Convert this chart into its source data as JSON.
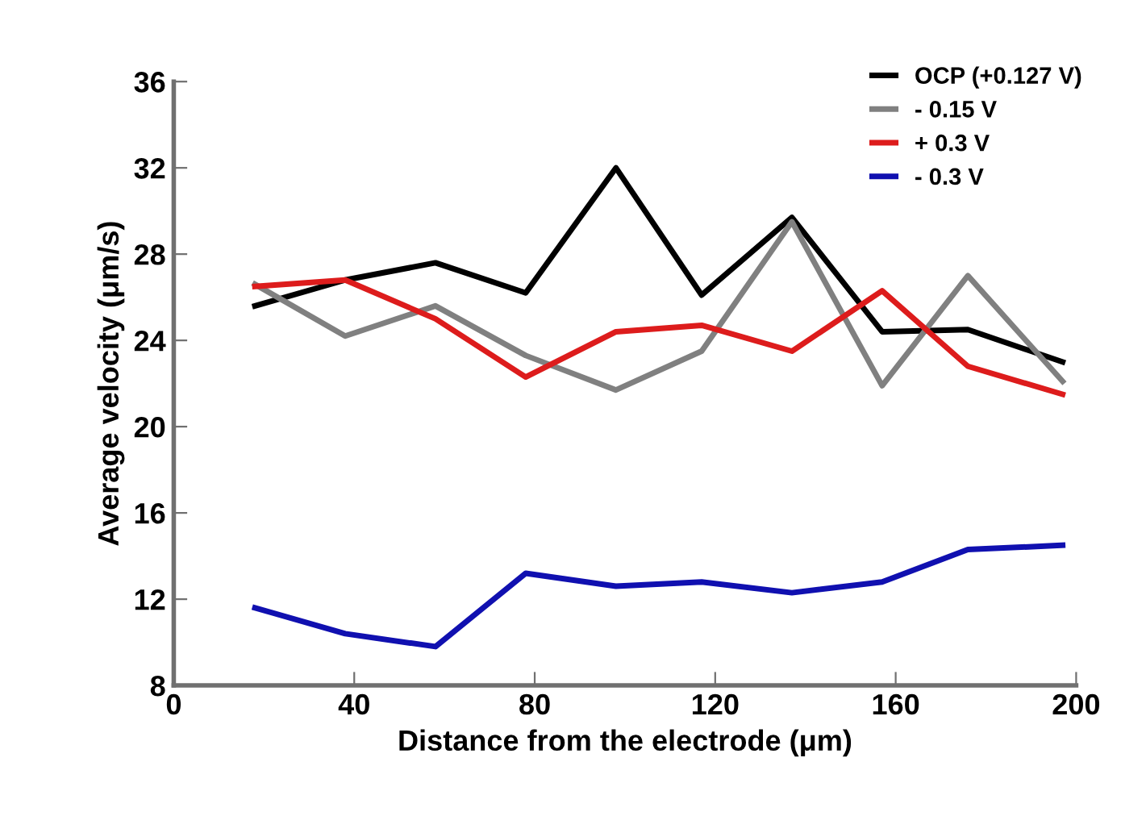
{
  "chart_data": {
    "type": "line",
    "xlabel": "Distance from the electrode (μm)",
    "ylabel": "Average velocity (μm/s)",
    "x": [
      18,
      38,
      58,
      78,
      98,
      117,
      137,
      157,
      176,
      197
    ],
    "xlim": [
      0,
      200
    ],
    "xticks": [
      0,
      40,
      80,
      120,
      160,
      200
    ],
    "ylim": [
      8,
      36
    ],
    "yticks": [
      8,
      12,
      16,
      20,
      24,
      28,
      32,
      36
    ],
    "legend": "top right",
    "grid": false,
    "series": [
      {
        "name": "OCP (+0.127 V)",
        "color": "#000000",
        "values": [
          25.6,
          26.8,
          27.6,
          26.2,
          32.0,
          26.1,
          29.7,
          24.4,
          24.5,
          23.0
        ]
      },
      {
        "name": "- 0.15 V",
        "color": "#808080",
        "values": [
          26.6,
          24.2,
          25.6,
          23.3,
          21.7,
          23.5,
          29.5,
          21.9,
          27.0,
          22.1
        ]
      },
      {
        "name": "+ 0.3 V",
        "color": "#dd1c1c",
        "values": [
          26.5,
          26.8,
          25.0,
          22.3,
          24.4,
          24.7,
          23.5,
          26.3,
          22.8,
          21.5
        ]
      },
      {
        "name": "- 0.3 V",
        "color": "#1010b0",
        "values": [
          11.6,
          10.4,
          9.8,
          13.2,
          12.6,
          12.8,
          12.3,
          12.8,
          14.3,
          14.5
        ]
      }
    ]
  }
}
